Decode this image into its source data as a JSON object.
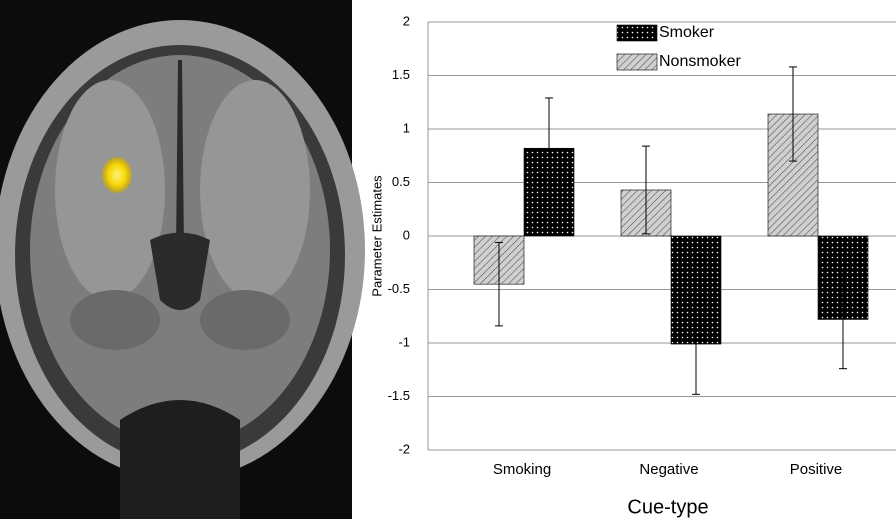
{
  "chart_data": {
    "type": "bar",
    "categories": [
      "Smoking",
      "Negative",
      "Positive"
    ],
    "series": [
      {
        "name": "Smoker",
        "color": "#000000",
        "values": [
          0.82,
          -1.01,
          -0.78
        ],
        "errors": [
          0.47,
          0.47,
          0.46
        ]
      },
      {
        "name": "Nonsmoker",
        "color": "#d0d0d0",
        "values": [
          -0.45,
          0.43,
          1.14
        ],
        "errors": [
          0.39,
          0.41,
          0.44
        ]
      }
    ],
    "y_label": "Parameter Estimates",
    "x_label": "Cue-type",
    "ylim": [
      -2,
      2
    ],
    "yticks": [
      -2,
      -1.5,
      -1,
      -0.5,
      0,
      0.5,
      1,
      1.5,
      2
    ],
    "grid": true,
    "legend": "top"
  }
}
